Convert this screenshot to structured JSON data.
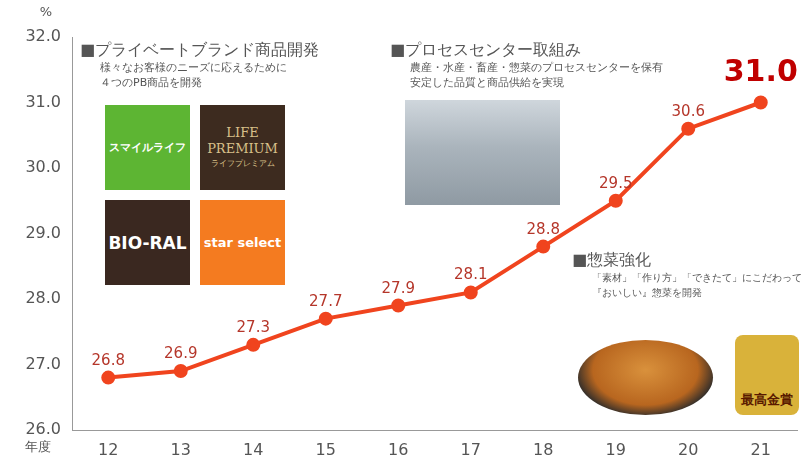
{
  "chart_data": {
    "type": "line",
    "categories": [
      "12",
      "13",
      "14",
      "15",
      "16",
      "17",
      "18",
      "19",
      "20",
      "21"
    ],
    "values": [
      26.8,
      26.9,
      27.3,
      27.7,
      27.9,
      28.1,
      28.8,
      29.5,
      30.6,
      31.0
    ],
    "value_labels": [
      "26.8",
      "26.9",
      "27.3",
      "27.7",
      "27.9",
      "28.1",
      "28.8",
      "29.5",
      "30.6",
      "31.0"
    ],
    "color": "#f0441e",
    "marker": "circle",
    "ylim": [
      26,
      32
    ],
    "yticks": [
      {
        "value": 26,
        "label": "26.0"
      },
      {
        "value": 27,
        "label": "27.0"
      },
      {
        "value": 28,
        "label": "28.0"
      },
      {
        "value": 29,
        "label": "29.0"
      },
      {
        "value": 30,
        "label": "30.0"
      },
      {
        "value": 31,
        "label": "31.0"
      },
      {
        "value": 32,
        "label": "32.0"
      }
    ],
    "x_label": "年度",
    "y_label": "%",
    "grid": false,
    "data_labels": true,
    "annotations": [
      {
        "title": "■プライベートブランド商品開発",
        "text": [
          "様々なお客様のニーズに応えるために",
          "４つのPB商品を開発"
        ],
        "logos": [
          {
            "text": [
              "スマイルライフ"
            ],
            "color": "#5db533"
          },
          {
            "text": [
              "LIFE",
              "PREMIUM",
              "ライフプレミアム"
            ],
            "color": "#3d2b1f"
          },
          {
            "text": [
              "BIO-RAL"
            ],
            "color": "#3a2820"
          },
          {
            "text": [
              "star select"
            ],
            "color": "#f47b20"
          }
        ]
      },
      {
        "title": "■プロセスセンター取組み",
        "text": [
          "農産・水産・畜産・惣菜のプロセスセンターを保有",
          "安定した品質と商品供給を実現"
        ]
      },
      {
        "title": "■惣菜強化",
        "text": [
          "「素材」「作り方」「できたて」にこだわって",
          "『おいしい』惣菜を開発"
        ],
        "badge": "最高金賞"
      }
    ]
  }
}
